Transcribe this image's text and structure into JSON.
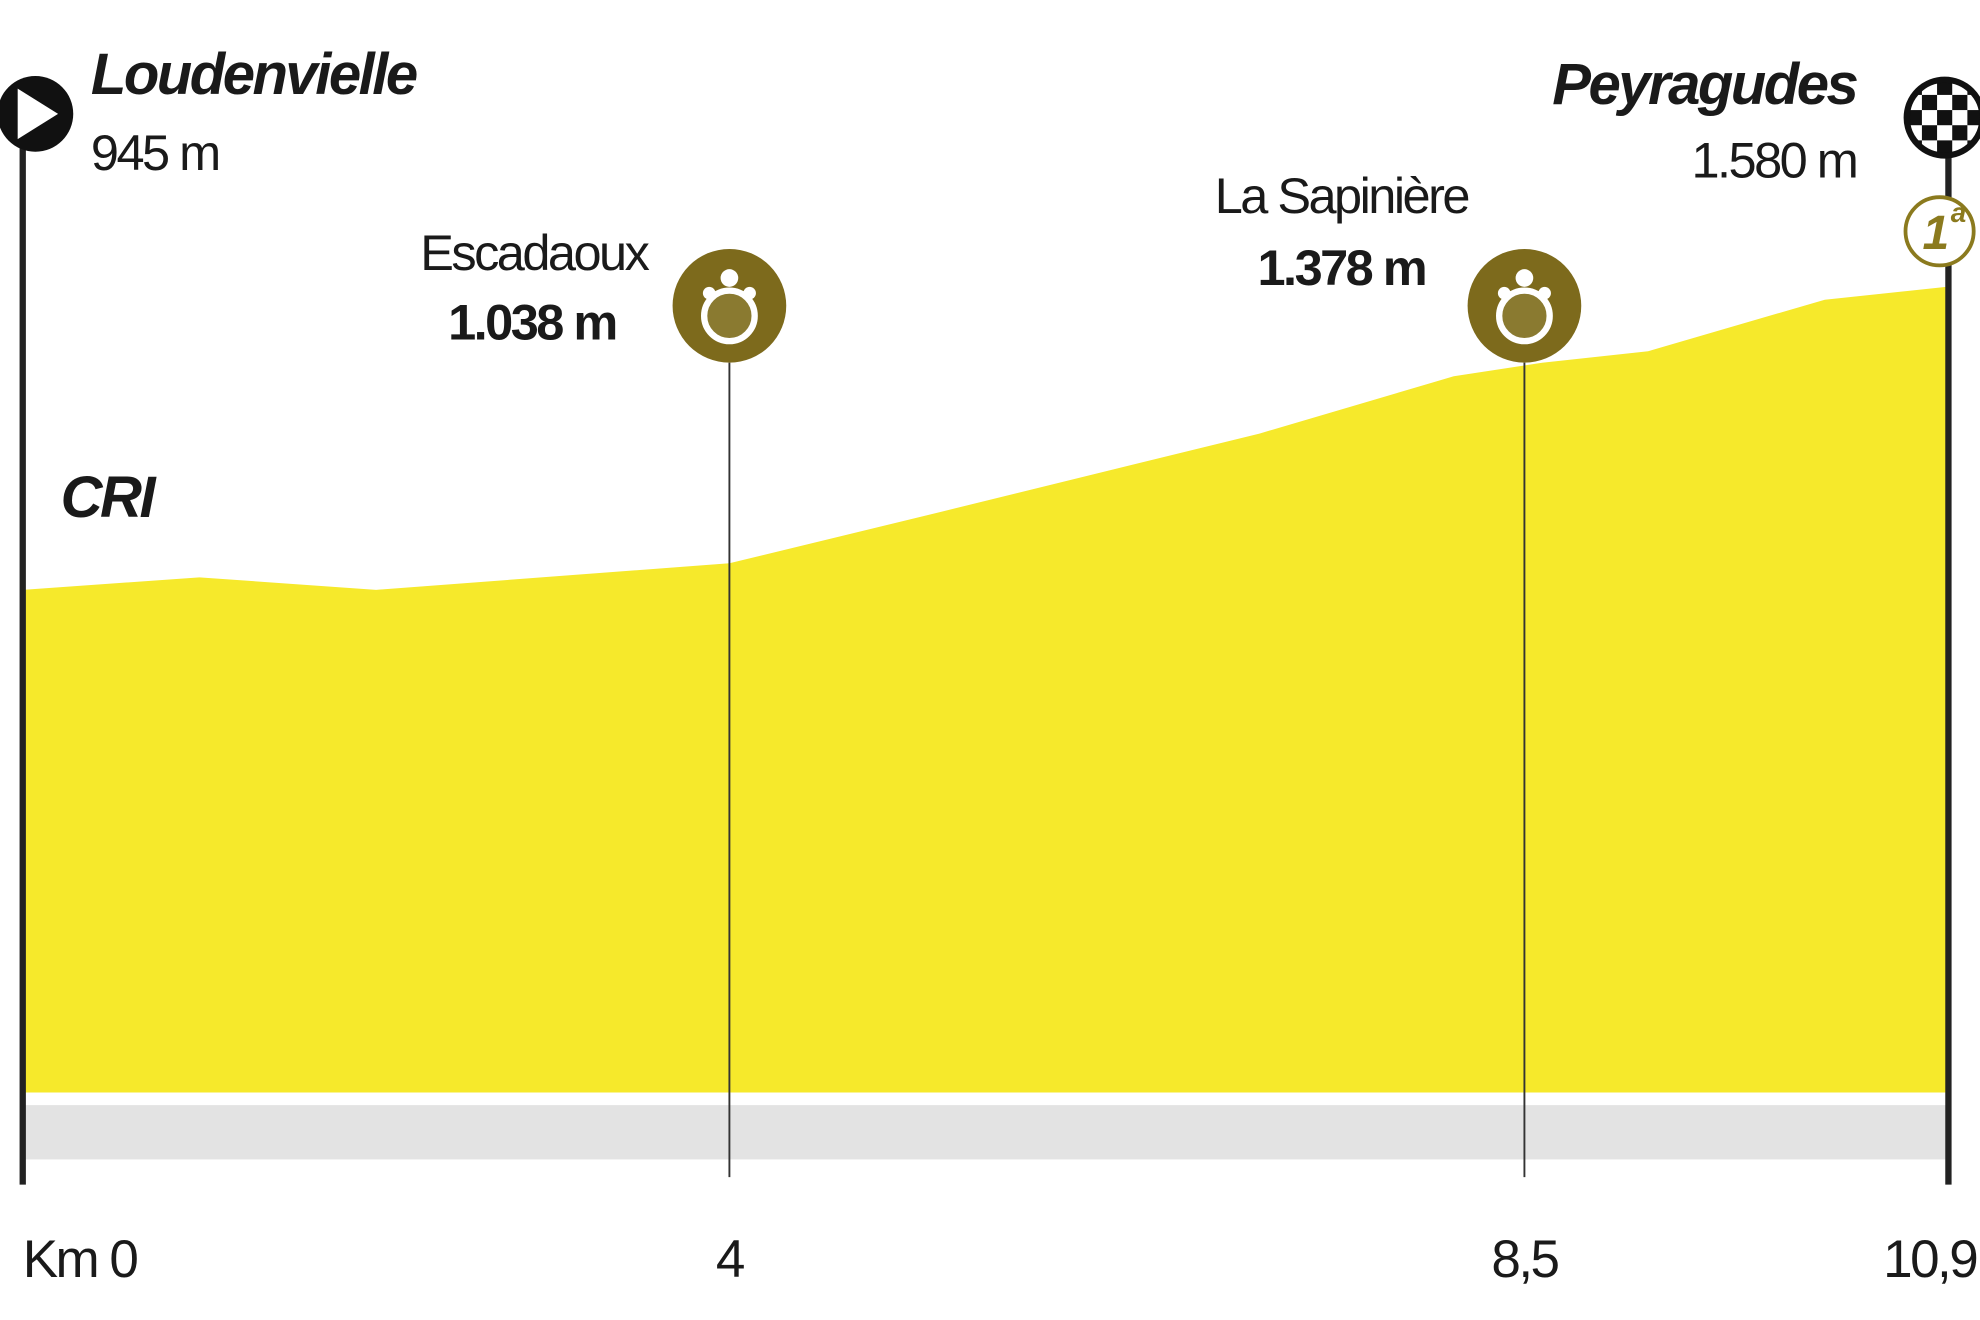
{
  "chart_data": {
    "type": "area",
    "x": [
      0,
      1,
      2,
      4,
      5.2,
      7.0,
      8.1,
      8.6,
      9.2,
      10.2,
      10.9
    ],
    "values": [
      965,
      989,
      965,
      1016,
      1115,
      1265,
      1375,
      1401,
      1423,
      1522,
      1547
    ],
    "color": "#f6e92b",
    "xlim": [
      0,
      10.9
    ],
    "ylim": [
      0,
      2000
    ],
    "xticks": [
      {
        "value": 0,
        "label": "Km 0"
      },
      4,
      {
        "value": 8.5,
        "label": "8,5"
      },
      {
        "value": 10.9,
        "label": "10,9"
      }
    ],
    "annotations": {
      "start": {
        "name": "Loudenvielle",
        "altitude": "945 m"
      },
      "finish": {
        "name": "Peyragudes",
        "altitude": "1.580 m"
      },
      "climbs": [
        {
          "name": "Escadaoux",
          "altitude": "1.038 m"
        },
        {
          "name": "La Sapinière",
          "altitude": "1.378 m"
        }
      ],
      "stage_type": "CRI",
      "category": {
        "number": "1",
        "suffix": "a"
      }
    }
  }
}
